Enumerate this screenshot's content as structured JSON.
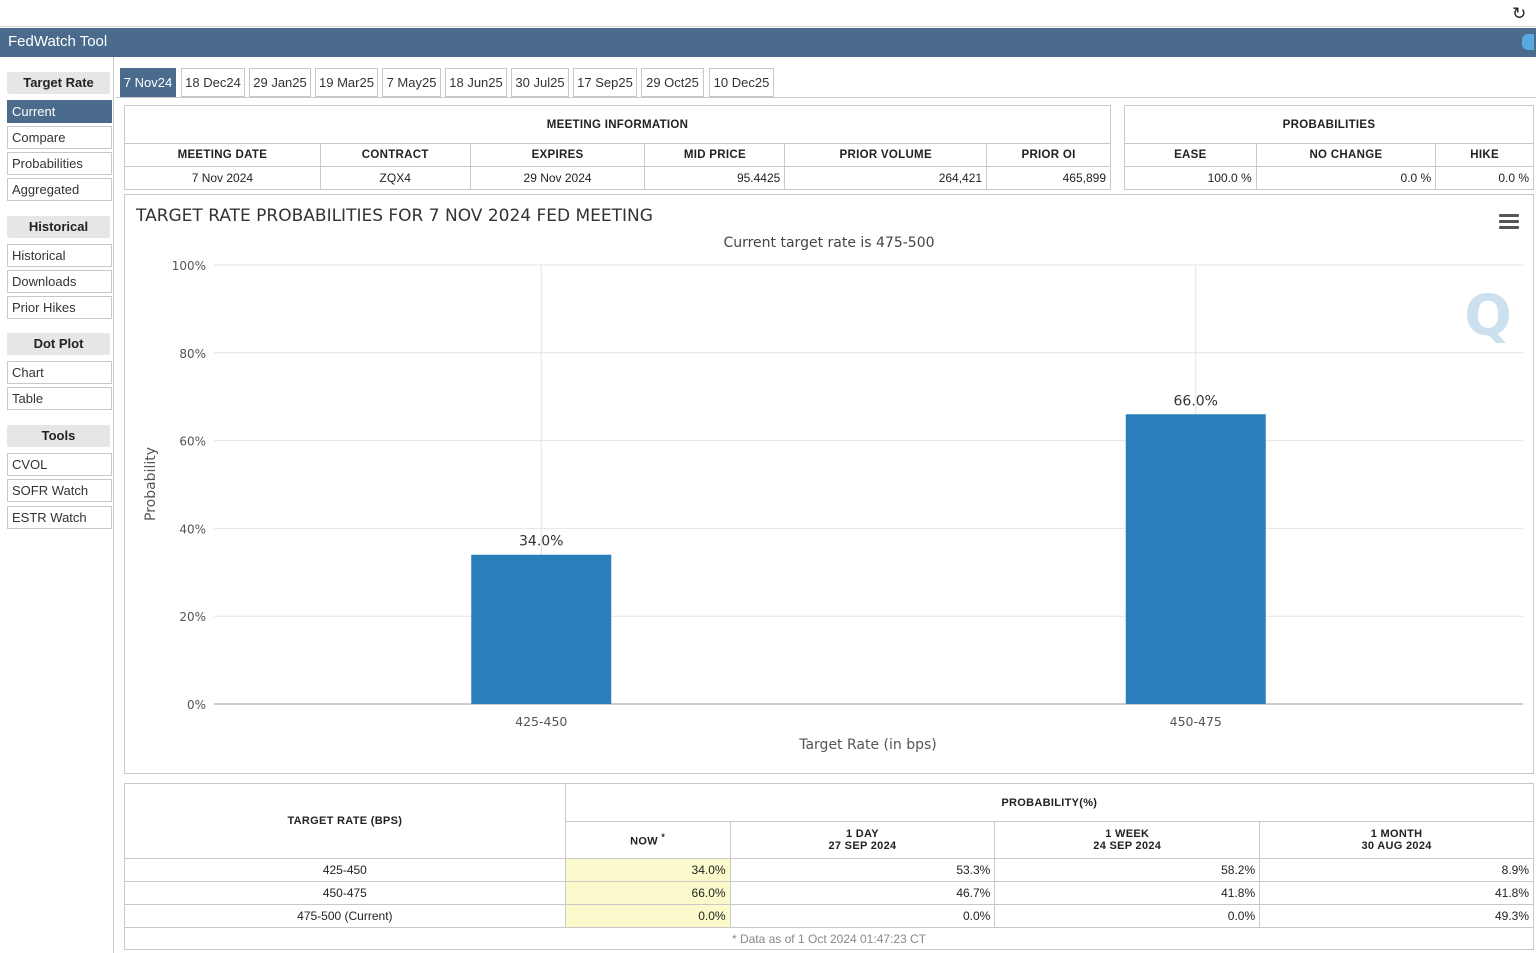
{
  "app": {
    "title": "FedWatch Tool",
    "reload_icon": "reload-icon",
    "twitter_icon": "twitter-icon"
  },
  "sidebar": {
    "groups": [
      {
        "heading": "Target Rate",
        "items": [
          "Current",
          "Compare",
          "Probabilities",
          "Aggregated"
        ]
      },
      {
        "heading": "Historical",
        "items": [
          "Historical",
          "Downloads",
          "Prior Hikes"
        ]
      },
      {
        "heading": "Dot Plot",
        "items": [
          "Chart",
          "Table"
        ]
      },
      {
        "heading": "Tools",
        "items": [
          "CVOL",
          "SOFR Watch",
          "ESTR Watch"
        ]
      }
    ],
    "active_item": "Current"
  },
  "tabs": [
    "7 Nov24",
    "18 Dec24",
    "29 Jan25",
    "19 Mar25",
    "7 May25",
    "18 Jun25",
    "30 Jul25",
    "17 Sep25",
    "29 Oct25",
    "10 Dec25"
  ],
  "active_tab": "7 Nov24",
  "meeting_info": {
    "caption": "MEETING INFORMATION",
    "headers": [
      "MEETING DATE",
      "CONTRACT",
      "EXPIRES",
      "MID PRICE",
      "PRIOR VOLUME",
      "PRIOR OI"
    ],
    "values": [
      "7 Nov 2024",
      "ZQX4",
      "29 Nov 2024",
      "95.4425",
      "264,421",
      "465,899"
    ]
  },
  "probabilities": {
    "caption": "PROBABILITIES",
    "headers": [
      "EASE",
      "NO CHANGE",
      "HIKE"
    ],
    "values": [
      "100.0 %",
      "0.0 %",
      "0.0 %"
    ]
  },
  "chart_data": {
    "type": "bar",
    "title": "TARGET RATE PROBABILITIES FOR 7 NOV 2024 FED MEETING",
    "subtitle": "Current target rate is 475-500",
    "xlabel": "Target Rate (in bps)",
    "ylabel": "Probability",
    "categories": [
      "425-450",
      "450-475"
    ],
    "values": [
      34.0,
      66.0
    ],
    "data_labels": [
      "34.0%",
      "66.0%"
    ],
    "ylim": [
      0,
      100
    ],
    "yticks": [
      "0%",
      "20%",
      "40%",
      "60%",
      "80%",
      "100%"
    ],
    "grid": true,
    "bar_color": "#2a7fba",
    "watermark": "Q"
  },
  "rate_table": {
    "rate_header": "TARGET RATE (BPS)",
    "prob_header": "PROBABILITY(%)",
    "columns": [
      {
        "line1": "NOW",
        "sup": "*",
        "line2": ""
      },
      {
        "line1": "1 DAY",
        "line2": "27 SEP 2024"
      },
      {
        "line1": "1 WEEK",
        "line2": "24 SEP 2024"
      },
      {
        "line1": "1 MONTH",
        "line2": "30 AUG 2024"
      }
    ],
    "rows": [
      {
        "rate": "425-450",
        "values": [
          "34.0%",
          "53.3%",
          "58.2%",
          "8.9%"
        ]
      },
      {
        "rate": "450-475",
        "values": [
          "66.0%",
          "46.7%",
          "41.8%",
          "41.8%"
        ]
      },
      {
        "rate": "475-500 (Current)",
        "values": [
          "0.0%",
          "0.0%",
          "0.0%",
          "49.3%"
        ]
      }
    ],
    "footnote": "* Data as of 1 Oct 2024 01:47:23 CT"
  }
}
